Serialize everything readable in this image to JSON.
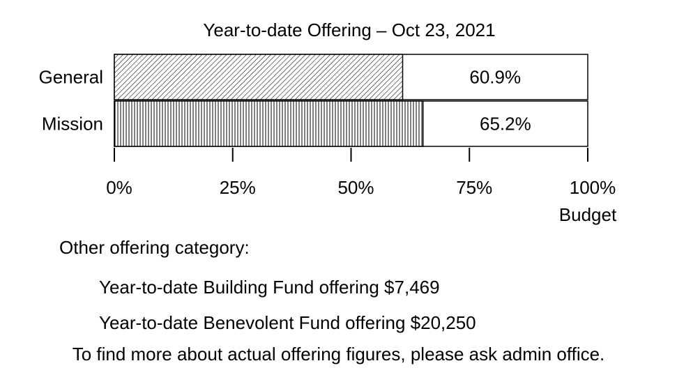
{
  "chart_data": {
    "type": "bar",
    "orientation": "horizontal",
    "stacked_to_total": true,
    "title": "Year-to-date Offering – Oct 23, 2021",
    "categories": [
      "General",
      "Mission"
    ],
    "values": [
      60.9,
      65.2
    ],
    "value_labels": [
      "60.9%",
      "65.2%"
    ],
    "xlim": [
      0,
      100
    ],
    "xticks": [
      0,
      25,
      50,
      75,
      100
    ],
    "xtick_labels": [
      "0%",
      "25%",
      "50%",
      "75%",
      "100%"
    ],
    "xlabel": "Budget",
    "fill_patterns": [
      "diagonal-hatch",
      "vertical-hatch"
    ],
    "grid": false,
    "colors": {
      "bar_stroke": "#000000",
      "bar_fill": "#ffffff",
      "hatch": "#000000"
    }
  },
  "notes": {
    "heading": "Other offering category:",
    "building": "Year-to-date Building Fund offering $7,469",
    "benevolent": "Year-to-date Benevolent Fund offering $20,250",
    "footer": "To find more about actual offering figures, please ask admin office."
  }
}
